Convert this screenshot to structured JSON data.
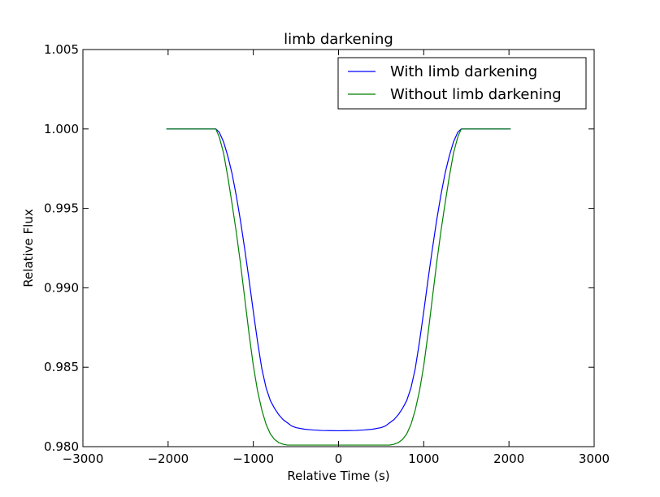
{
  "chart_data": {
    "type": "line",
    "title": "limb darkening",
    "xlabel": "Relative Time (s)",
    "ylabel": "Relative Flux",
    "xlim": [
      -3000,
      3000
    ],
    "ylim": [
      0.98,
      1.005
    ],
    "xticks": [
      -3000,
      -2000,
      -1000,
      0,
      1000,
      2000,
      3000
    ],
    "xtick_labels": [
      "−3000",
      "−2000",
      "−1000",
      "0",
      "1000",
      "2000",
      "3000"
    ],
    "yticks": [
      0.98,
      0.985,
      0.99,
      0.995,
      1.0,
      1.005
    ],
    "ytick_labels": [
      "0.980",
      "0.985",
      "0.990",
      "0.995",
      "1.000",
      "1.005"
    ],
    "grid": false,
    "legend_position": "top-right",
    "series": [
      {
        "name": "With limb darkening",
        "color": "#0000ff",
        "x": [
          -2020,
          -1440,
          -1400,
          -1350,
          -1300,
          -1250,
          -1200,
          -1150,
          -1100,
          -1050,
          -1000,
          -950,
          -900,
          -850,
          -800,
          -750,
          -700,
          -650,
          -600,
          -550,
          -500,
          -400,
          -300,
          -200,
          -100,
          0,
          100,
          200,
          300,
          400,
          500,
          550,
          600,
          650,
          700,
          750,
          800,
          850,
          900,
          950,
          1000,
          1050,
          1100,
          1150,
          1200,
          1250,
          1300,
          1350,
          1400,
          1440,
          2020
        ],
        "y": [
          1.0,
          1.0,
          0.9998,
          0.9992,
          0.9983,
          0.9972,
          0.9958,
          0.9942,
          0.9924,
          0.9905,
          0.9885,
          0.9866,
          0.9849,
          0.9837,
          0.9829,
          0.9824,
          0.982,
          0.9817,
          0.9815,
          0.9813,
          0.9812,
          0.9811,
          0.98105,
          0.98102,
          0.98101,
          0.981,
          0.98101,
          0.98102,
          0.98105,
          0.9811,
          0.9812,
          0.9813,
          0.9815,
          0.9817,
          0.982,
          0.9824,
          0.9829,
          0.9837,
          0.9849,
          0.9866,
          0.9885,
          0.9905,
          0.9924,
          0.9942,
          0.9958,
          0.9972,
          0.9983,
          0.9992,
          0.9998,
          1.0,
          1.0
        ]
      },
      {
        "name": "Without limb darkening",
        "color": "#008000",
        "x": [
          -2020,
          -1440,
          -1400,
          -1350,
          -1300,
          -1250,
          -1200,
          -1150,
          -1100,
          -1050,
          -1000,
          -950,
          -900,
          -850,
          -800,
          -750,
          -700,
          -650,
          -600,
          600,
          650,
          700,
          750,
          800,
          850,
          900,
          950,
          1000,
          1050,
          1100,
          1150,
          1200,
          1250,
          1300,
          1350,
          1400,
          1440,
          2020
        ],
        "y": [
          1.0,
          1.0,
          0.9995,
          0.9985,
          0.997,
          0.9953,
          0.9935,
          0.9915,
          0.9893,
          0.9871,
          0.9851,
          0.9835,
          0.9823,
          0.9814,
          0.9808,
          0.98045,
          0.98025,
          0.98015,
          0.9801,
          0.9801,
          0.98015,
          0.98025,
          0.98045,
          0.9808,
          0.9814,
          0.9823,
          0.9835,
          0.9851,
          0.9871,
          0.9893,
          0.9915,
          0.9935,
          0.9953,
          0.997,
          0.9985,
          0.9995,
          1.0,
          1.0
        ]
      }
    ]
  }
}
